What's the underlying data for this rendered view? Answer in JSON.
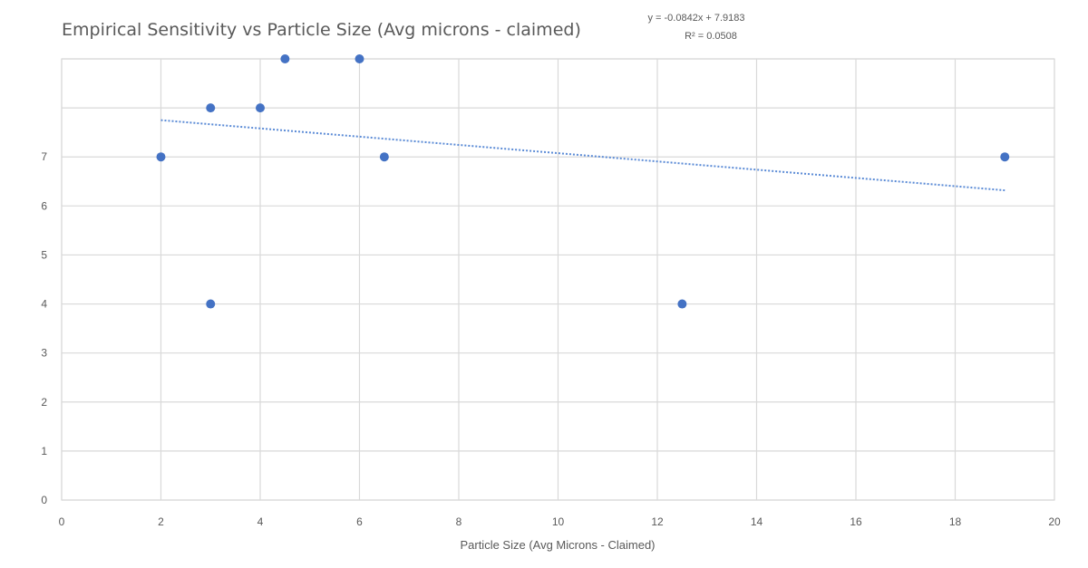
{
  "chart_data": {
    "type": "scatter",
    "title": "Empirical Sensitivity vs Particle Size (Avg microns - claimed)",
    "xlabel": "Particle Size (Avg Microns - Claimed)",
    "ylabel": "",
    "xlim": [
      0,
      20
    ],
    "ylim": [
      0,
      9
    ],
    "x_ticks": [
      0,
      2,
      4,
      6,
      8,
      10,
      12,
      14,
      16,
      18,
      20
    ],
    "y_ticks": [
      0,
      1,
      2,
      3,
      4,
      5,
      6,
      7,
      8,
      9
    ],
    "y_tick_labels": [
      "0",
      "1",
      "2",
      "3",
      "4",
      "5",
      "6",
      "7",
      "",
      ""
    ],
    "grid": true,
    "series": [
      {
        "color": "#4472c4",
        "points": [
          {
            "x": 2,
            "y": 7
          },
          {
            "x": 3,
            "y": 8
          },
          {
            "x": 3,
            "y": 4
          },
          {
            "x": 4,
            "y": 8
          },
          {
            "x": 4.5,
            "y": 9
          },
          {
            "x": 6,
            "y": 9
          },
          {
            "x": 6.5,
            "y": 7
          },
          {
            "x": 12.5,
            "y": 4
          },
          {
            "x": 19,
            "y": 7
          }
        ]
      }
    ],
    "trendline": {
      "type": "linear",
      "slope": -0.0842,
      "intercept": 7.9183,
      "x_range": [
        2,
        19
      ],
      "equation_text": "y = -0.0842x + 7.9183",
      "r2_text": "R² = 0.0508"
    }
  }
}
